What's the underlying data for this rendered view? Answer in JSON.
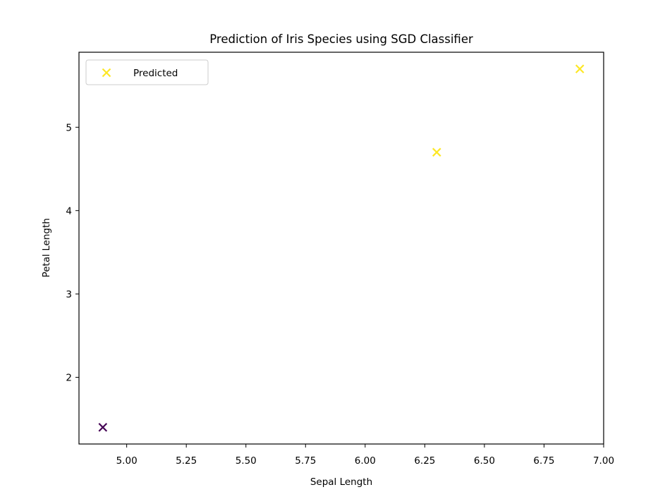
{
  "chart_data": {
    "type": "scatter",
    "title": "Prediction of Iris Species using SGD Classifier",
    "xlabel": "Sepal Length",
    "ylabel": "Petal Length",
    "xlim": [
      4.8,
      7.0
    ],
    "ylim": [
      1.2,
      5.9
    ],
    "xticks": [
      "5.00",
      "5.25",
      "5.50",
      "5.75",
      "6.00",
      "6.25",
      "6.50",
      "6.75",
      "7.00"
    ],
    "yticks": [
      "2",
      "3",
      "4",
      "5"
    ],
    "grid": false,
    "legend": {
      "position": "top-left",
      "entries": [
        "Predicted"
      ]
    },
    "marker": "x",
    "colormap": "viridis",
    "series": [
      {
        "name": "Predicted",
        "points": [
          {
            "x": 4.9,
            "y": 1.4,
            "class": 0,
            "color": "#440154"
          },
          {
            "x": 6.3,
            "y": 4.7,
            "class": 2,
            "color": "#fde725"
          },
          {
            "x": 6.9,
            "y": 5.7,
            "class": 2,
            "color": "#fde725"
          }
        ]
      }
    ]
  }
}
